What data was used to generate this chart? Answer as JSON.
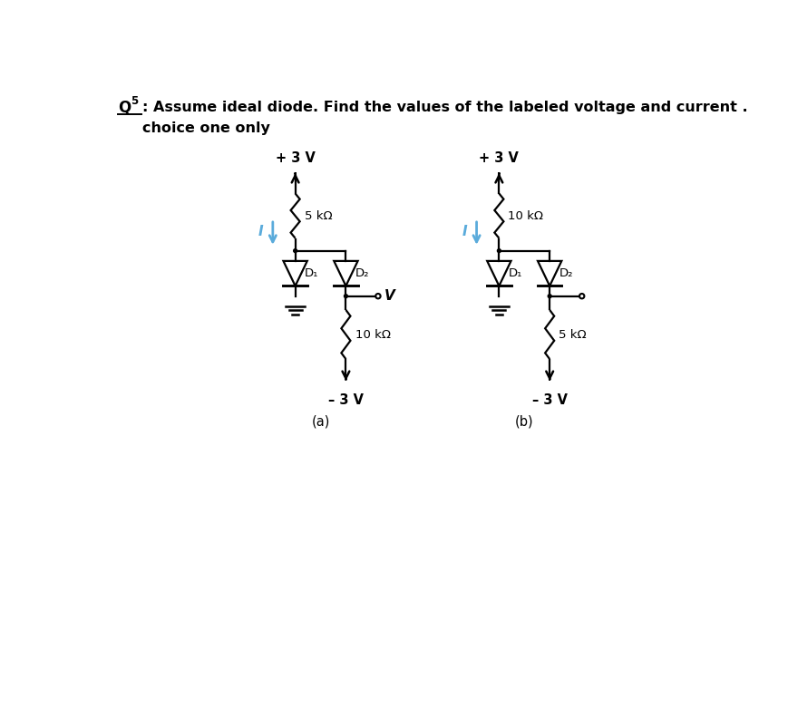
{
  "bg_color": "#ffffff",
  "line_color": "#000000",
  "arrow_color": "#5aabdb",
  "title_q": "Q",
  "title_sup": "5",
  "title_rest": ": Assume ideal diode. Find the values of the labeled voltage and current .",
  "title_line2": "choice one only",
  "circuit_a": {
    "label": "(a)",
    "top_voltage": "+ 3 V",
    "bottom_voltage": "– 3 V",
    "resistor_top_label": "5 kΩ",
    "resistor_bottom_label": "10 kΩ",
    "diode1_label": "D₁",
    "diode2_label": "D₂",
    "v_label": "V",
    "current_label": "I"
  },
  "circuit_b": {
    "label": "(b)",
    "top_voltage": "+ 3 V",
    "bottom_voltage": "– 3 V",
    "resistor_top_label": "10 kΩ",
    "resistor_bottom_label": "5 kΩ",
    "diode1_label": "D₁",
    "diode2_label": "D₂",
    "current_label": "I"
  },
  "figsize": [
    8.69,
    7.91
  ],
  "dpi": 100
}
